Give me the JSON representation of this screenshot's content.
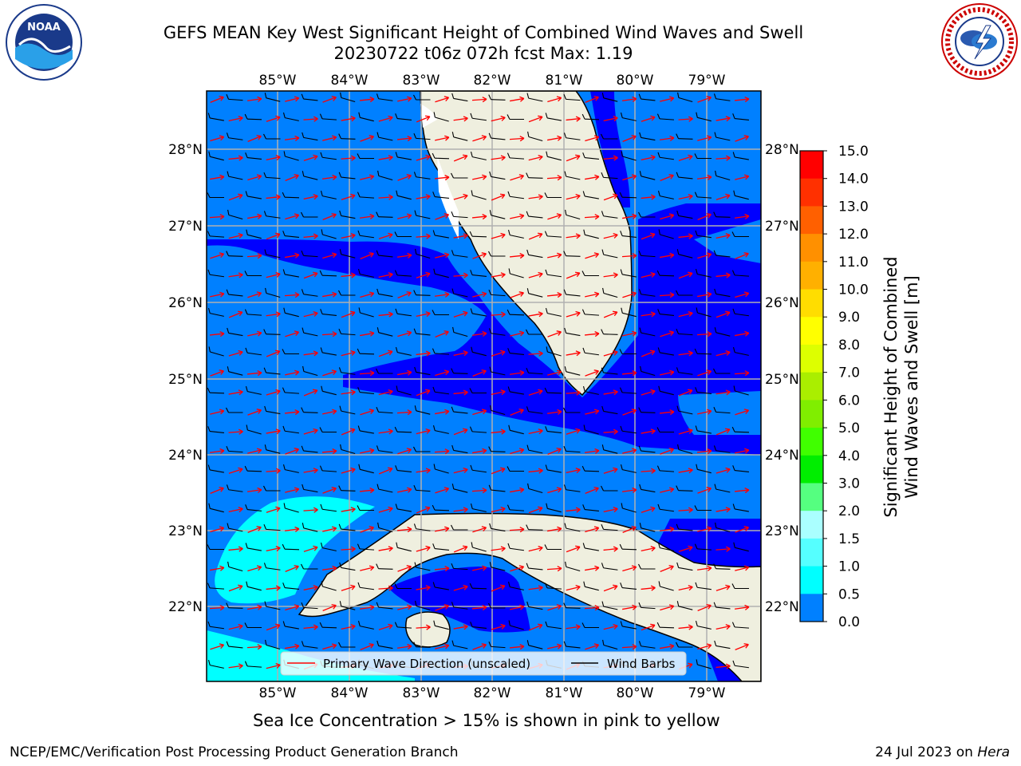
{
  "header": {
    "title_line1": "GEFS MEAN Key West Significant Height of Combined Wind Waves and Swell",
    "title_line2": "20230722 t06z 072h fcst   Max: 1.19"
  },
  "logos": {
    "left": {
      "text": "NOAA"
    },
    "right": {
      "text": "NATIONAL WEATHER SERVICE"
    }
  },
  "map": {
    "lon_labels": [
      "85°W",
      "84°W",
      "83°W",
      "82°W",
      "81°W",
      "80°W",
      "79°W"
    ],
    "lat_labels": [
      "28°N",
      "27°N",
      "26°N",
      "25°N",
      "24°N",
      "23°N",
      "22°N"
    ],
    "legend": {
      "wave_label": "Primary Wave Direction (unscaled)",
      "barb_label": "Wind Barbs",
      "wave_color": "#ff0000",
      "barb_color": "#000000"
    },
    "colors": {
      "land": "#efefdf",
      "deep": "#0000ff",
      "mid": "#0080ff",
      "cyan": "#00ffff"
    }
  },
  "colorbar": {
    "ticks": [
      "15.0",
      "14.0",
      "13.0",
      "12.0",
      "11.0",
      "10.0",
      "9.0",
      "8.0",
      "7.0",
      "6.0",
      "5.0",
      "4.0",
      "3.0",
      "2.0",
      "1.5",
      "1.0",
      "0.5",
      "0.0"
    ],
    "colors": [
      "#ff0000",
      "#ff3000",
      "#ff6000",
      "#ff9000",
      "#ffb000",
      "#ffdd00",
      "#ffff00",
      "#ddff00",
      "#aaee00",
      "#80ee00",
      "#40ff00",
      "#00ee00",
      "#55ff80",
      "#aaffff",
      "#55ffff",
      "#00ffff",
      "#0080ff",
      "#0000ff"
    ],
    "label_line1": "Significant Height of Combined",
    "label_line2": "Wind Waves and Swell [m]"
  },
  "caption": "Sea Ice Concentration > 15% is shown in pink to yellow",
  "footer": {
    "left": "NCEP/EMC/Verification Post Processing Product Generation Branch",
    "right_date": "24 Jul 2023 on ",
    "right_host": "Hera"
  }
}
